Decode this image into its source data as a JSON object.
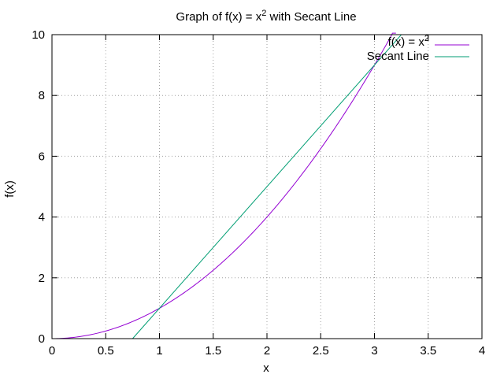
{
  "chart_data": {
    "type": "line",
    "title": {
      "prefix": "Graph of f(x) = x",
      "sup": "2",
      "suffix": " with Secant Line"
    },
    "xlabel": "x",
    "ylabel": "f(x)",
    "xlim": [
      0,
      4
    ],
    "ylim": [
      0,
      10
    ],
    "xticks": [
      0,
      0.5,
      1,
      1.5,
      2,
      2.5,
      3,
      3.5,
      4
    ],
    "xtick_labels": [
      "0",
      "0.5",
      "1",
      "1.5",
      "2",
      "2.5",
      "3",
      "3.5",
      "4"
    ],
    "yticks": [
      0,
      2,
      4,
      6,
      8,
      10
    ],
    "ytick_labels": [
      "0",
      "2",
      "4",
      "6",
      "8",
      "10"
    ],
    "grid": true,
    "legend_position": "top-right",
    "series": [
      {
        "name": "f(x) = x",
        "name_sup": "2",
        "kind": "function",
        "expression": "x^2",
        "x_range": [
          0,
          3.2
        ],
        "color": "#9400d3"
      },
      {
        "name": "Secant Line",
        "kind": "line",
        "slope": 4,
        "intercept": -3,
        "through_points": [
          [
            1,
            1
          ],
          [
            3,
            9
          ]
        ],
        "x_range": [
          0.75,
          3.25
        ],
        "color": "#009e73"
      }
    ]
  }
}
